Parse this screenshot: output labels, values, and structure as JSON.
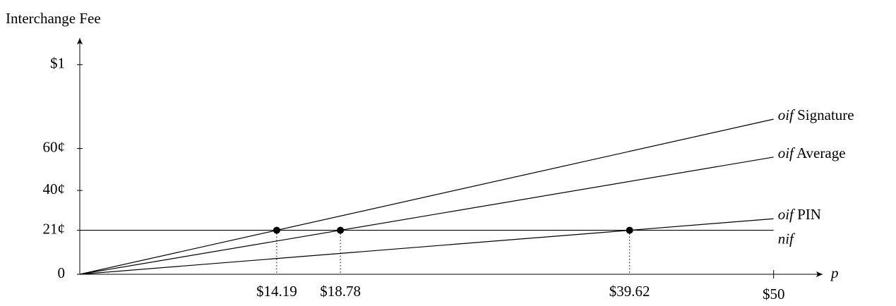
{
  "chart_data": {
    "type": "line",
    "y_label": "Interchange Fee",
    "x_label": "p",
    "xlim": [
      0,
      52
    ],
    "ylim": [
      0,
      110
    ],
    "xticks": [
      {
        "value": 50,
        "label": "$50"
      }
    ],
    "yticks": [
      0,
      {
        "value": 21,
        "label": "21¢"
      },
      {
        "value": 40,
        "label": "40¢"
      },
      {
        "value": 60,
        "label": "60¢"
      },
      {
        "value": 100,
        "label": "$1"
      }
    ],
    "series": [
      {
        "name": "oif Signature",
        "color": "#000000",
        "x": [
          0,
          50
        ],
        "values": [
          0,
          74.0
        ]
      },
      {
        "name": "oif Average",
        "color": "#000000",
        "x": [
          0,
          50
        ],
        "values": [
          0,
          55.9
        ]
      },
      {
        "name": "oif PIN",
        "color": "#000000",
        "x": [
          0,
          50
        ],
        "values": [
          0,
          26.5
        ]
      },
      {
        "name": "nif",
        "color": "#000000",
        "x": [
          0,
          50
        ],
        "values": [
          21,
          21
        ]
      }
    ],
    "points": {
      "x": [
        14.19,
        18.78,
        39.62
      ],
      "value_labels": [
        "$14.19",
        "$18.78",
        "$39.62"
      ],
      "values": [
        21,
        21,
        21
      ]
    }
  }
}
